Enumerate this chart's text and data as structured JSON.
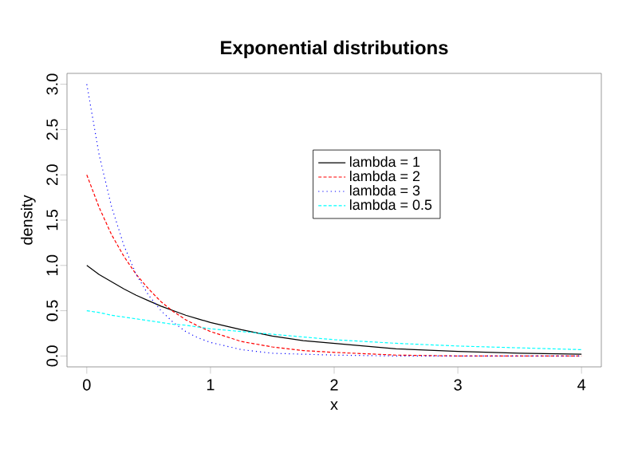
{
  "chart_data": {
    "type": "line",
    "title": "Exponential distributions",
    "xlabel": "x",
    "ylabel": "density",
    "x": [
      0,
      0.1,
      0.2,
      0.3,
      0.4,
      0.5,
      0.6,
      0.7,
      0.8,
      0.9,
      1.0,
      1.25,
      1.5,
      1.75,
      2,
      2.5,
      3,
      3.5,
      4
    ],
    "series": [
      {
        "name": "lambda = 1",
        "color": "#000000",
        "line_style": "solid",
        "values": [
          1.0,
          0.9,
          0.82,
          0.74,
          0.67,
          0.61,
          0.55,
          0.5,
          0.45,
          0.41,
          0.37,
          0.29,
          0.22,
          0.17,
          0.14,
          0.08,
          0.05,
          0.03,
          0.02
        ]
      },
      {
        "name": "lambda = 2",
        "color": "#ff0000",
        "line_style": "dashed",
        "values": [
          2.0,
          1.64,
          1.34,
          1.1,
          0.9,
          0.74,
          0.6,
          0.49,
          0.4,
          0.33,
          0.27,
          0.16,
          0.1,
          0.06,
          0.04,
          0.01,
          0.0,
          0.0,
          0.0
        ]
      },
      {
        "name": "lambda = 3",
        "color": "#0000ff",
        "line_style": "dotted",
        "values": [
          3.0,
          2.22,
          1.65,
          1.22,
          0.9,
          0.67,
          0.5,
          0.37,
          0.27,
          0.2,
          0.15,
          0.07,
          0.03,
          0.02,
          0.01,
          0.0,
          0.0,
          0.0,
          0.0
        ]
      },
      {
        "name": "lambda = 0.5",
        "color": "#00ffff",
        "line_style": "dashed",
        "values": [
          0.5,
          0.48,
          0.45,
          0.43,
          0.41,
          0.39,
          0.37,
          0.35,
          0.34,
          0.32,
          0.3,
          0.27,
          0.24,
          0.21,
          0.18,
          0.14,
          0.11,
          0.09,
          0.07
        ]
      }
    ],
    "xlim": [
      -0.16,
      4.16
    ],
    "ylim": [
      -0.12,
      3.12
    ],
    "xticks": [
      0,
      1,
      2,
      3,
      4
    ],
    "yticks": [
      {
        "value": 0,
        "label": "0.0"
      },
      {
        "value": 0.5,
        "label": "0.5"
      },
      {
        "value": 1,
        "label": "1.0"
      },
      {
        "value": 1.5,
        "label": "1.5"
      },
      {
        "value": 2,
        "label": "2.0"
      },
      {
        "value": 2.5,
        "label": "2.5"
      },
      {
        "value": 3,
        "label": "3.0"
      }
    ],
    "legend": "right",
    "grid": false,
    "marker": "none"
  }
}
